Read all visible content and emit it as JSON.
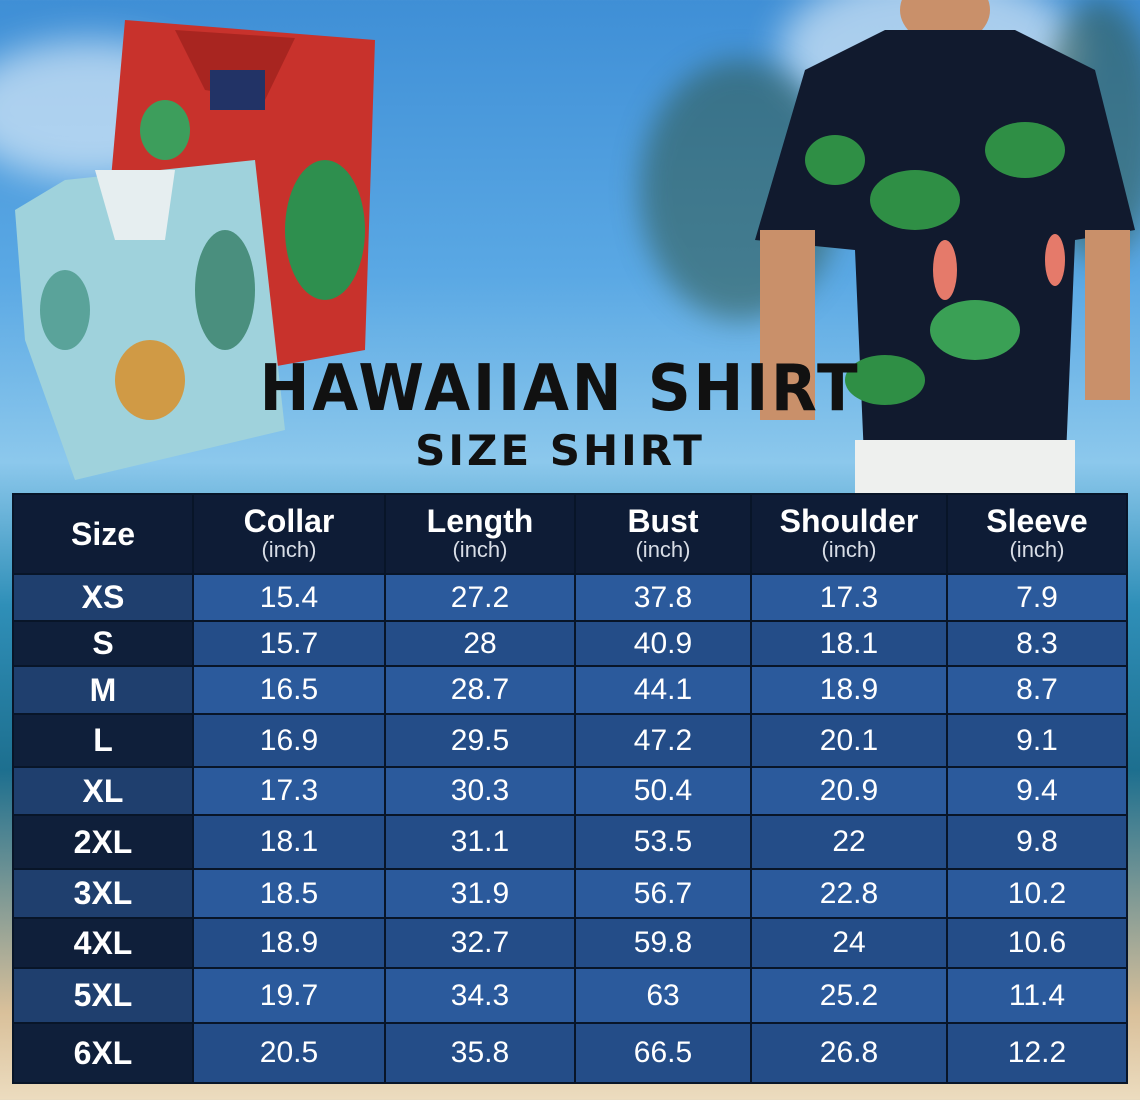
{
  "title": "HAWAIIAN SHIRT",
  "subtitle": "SIZE SHIRT",
  "table": {
    "headers": [
      {
        "label": "Size",
        "unit": ""
      },
      {
        "label": "Collar",
        "unit": "(inch)"
      },
      {
        "label": "Length",
        "unit": "(inch)"
      },
      {
        "label": "Bust",
        "unit": "(inch)"
      },
      {
        "label": "Shoulder",
        "unit": "(inch)"
      },
      {
        "label": "Sleeve",
        "unit": "(inch)"
      }
    ],
    "rows": [
      [
        "XS",
        "15.4",
        "27.2",
        "37.8",
        "17.3",
        "7.9"
      ],
      [
        "S",
        "15.7",
        "28",
        "40.9",
        "18.1",
        "8.3"
      ],
      [
        "M",
        "16.5",
        "28.7",
        "44.1",
        "18.9",
        "8.7"
      ],
      [
        "L",
        "16.9",
        "29.5",
        "47.2",
        "20.1",
        "9.1"
      ],
      [
        "XL",
        "17.3",
        "30.3",
        "50.4",
        "20.9",
        "9.4"
      ],
      [
        "2XL",
        "18.1",
        "31.1",
        "53.5",
        "22",
        "9.8"
      ],
      [
        "3XL",
        "18.5",
        "31.9",
        "56.7",
        "22.8",
        "10.2"
      ],
      [
        "4XL",
        "18.9",
        "32.7",
        "59.8",
        "24",
        "10.6"
      ],
      [
        "5XL",
        "19.7",
        "34.3",
        "63",
        "25.2",
        "11.4"
      ],
      [
        "6XL",
        "20.5",
        "35.8",
        "66.5",
        "26.8",
        "12.2"
      ]
    ]
  },
  "colors": {
    "header": "#0e1c36",
    "row_light": "#2b5a9c",
    "row_dark": "#244d88"
  }
}
